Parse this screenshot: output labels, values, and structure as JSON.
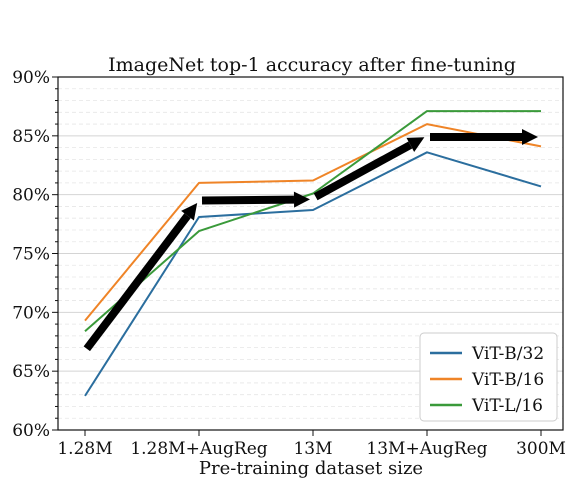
{
  "chart_data": {
    "type": "line",
    "title": "ImageNet top-1 accuracy after fine-tuning",
    "xlabel": "Pre-training dataset size",
    "ylabel": "",
    "categories": [
      "1.28M",
      "1.28M+AugReg",
      "13M",
      "13M+AugReg",
      "300M"
    ],
    "y_ticks": [
      "60%",
      "65%",
      "70%",
      "75%",
      "80%",
      "85%",
      "90%"
    ],
    "ylim": [
      60,
      90
    ],
    "grid": "horizontal dashed minor, solid major",
    "legend_position": "lower-right",
    "series": [
      {
        "name": "ViT-B/32",
        "color": "#2b6e9e",
        "values": [
          62.9,
          78.1,
          78.7,
          83.6,
          80.7
        ]
      },
      {
        "name": "ViT-B/16",
        "color": "#ef8427",
        "values": [
          69.3,
          81.0,
          81.2,
          86.0,
          84.1
        ]
      },
      {
        "name": "ViT-L/16",
        "color": "#3a9a3a",
        "values": [
          68.4,
          76.9,
          80.1,
          87.1,
          87.1
        ]
      }
    ],
    "annotations": [
      {
        "type": "arrow",
        "from": [
          "1.28M",
          66.7
        ],
        "to": [
          "1.28M+AugReg",
          79.5
        ]
      },
      {
        "type": "arrow",
        "from": [
          "1.28M+AugReg",
          79.5
        ],
        "to": [
          "13M",
          79.6
        ]
      },
      {
        "type": "arrow",
        "from": [
          "13M",
          79.7
        ],
        "to": [
          "13M+AugReg",
          85.0
        ]
      },
      {
        "type": "arrow",
        "from": [
          "13M+AugReg",
          84.9
        ],
        "to": [
          "300M",
          84.9
        ]
      }
    ]
  }
}
